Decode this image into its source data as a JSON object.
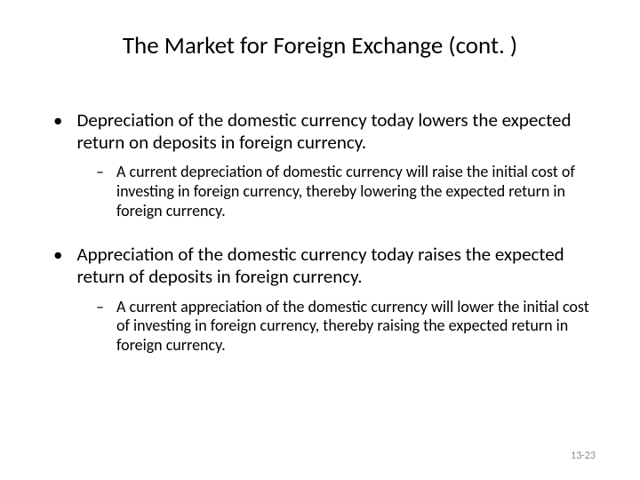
{
  "title": "The Market for Foreign Exchange (cont. )",
  "bullets": [
    {
      "text": "Depreciation of the domestic currency today lowers the expected return on deposits in foreign currency.",
      "sub": "A current depreciation of domestic currency will raise the initial cost of investing in foreign currency, thereby lowering the expected return in foreign currency."
    },
    {
      "text": "Appreciation of the domestic currency today raises the expected return of deposits in foreign currency.",
      "sub": "A current appreciation of the domestic currency will lower the initial cost of investing in foreign currency, thereby raising the expected return in foreign currency."
    }
  ],
  "page_number": "13-23",
  "styles": {
    "title_fontsize": 27,
    "bullet1_fontsize": 21,
    "bullet2_fontsize": 18,
    "text_color": "#000000",
    "background_color": "#ffffff",
    "page_number_color": "#888888",
    "page_number_fontsize": 12
  }
}
